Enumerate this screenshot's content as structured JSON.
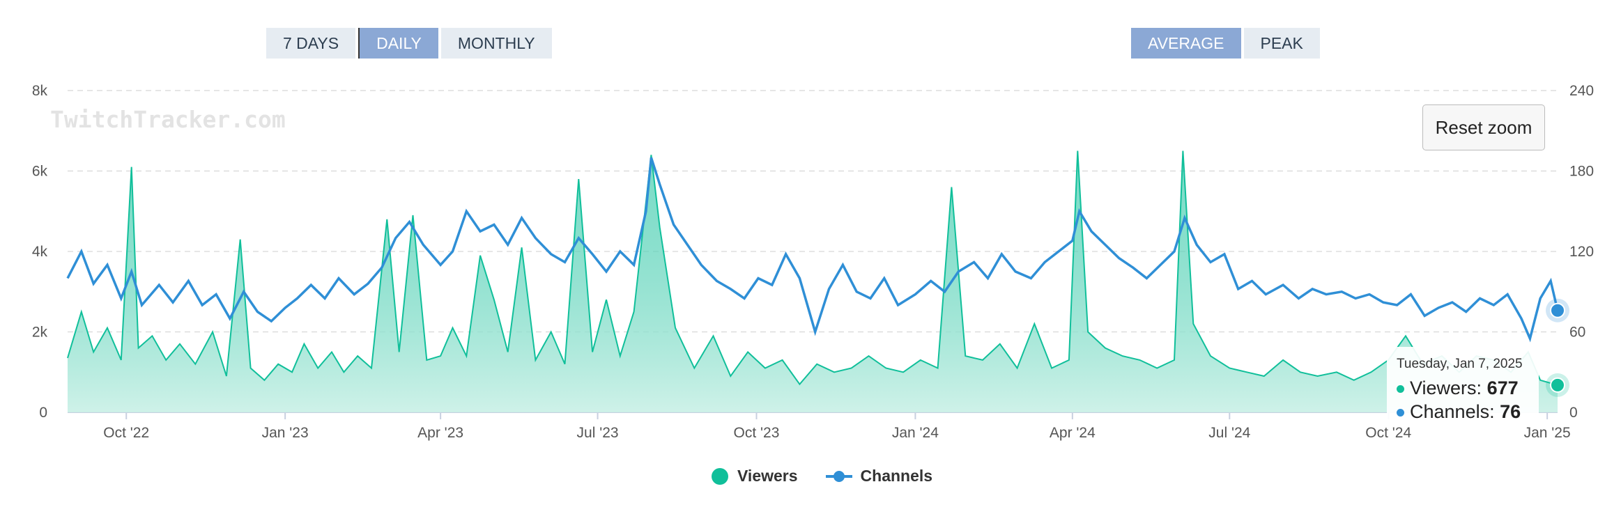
{
  "controls": {
    "period": [
      {
        "label": "7 DAYS",
        "active": false
      },
      {
        "label": "DAILY",
        "active": true
      },
      {
        "label": "MONTHLY",
        "active": false
      }
    ],
    "mode": [
      {
        "label": "AVERAGE",
        "active": true
      },
      {
        "label": "PEAK",
        "active": false
      }
    ]
  },
  "watermark": "TwitchTracker.com",
  "reset_zoom_label": "Reset zoom",
  "tooltip": {
    "date": "Tuesday, Jan 7, 2025",
    "viewers_label": "Viewers:",
    "viewers_value": "677",
    "channels_label": "Channels:",
    "channels_value": "76"
  },
  "legend": {
    "viewers": "Viewers",
    "channels": "Channels"
  },
  "colors": {
    "viewers": "#10bf9a",
    "viewers_fill": "#c9f0e6",
    "channels": "#2f8fd6",
    "grid": "#dddddd",
    "button_active": "#8ba8d5",
    "button_inactive": "#e6ecf2"
  },
  "chart_data": {
    "type": "area",
    "title": "",
    "x_range": [
      "2022-08-28",
      "2025-01-07"
    ],
    "x_ticks": [
      "Oct '22",
      "Jan '23",
      "Apr '23",
      "Jul '23",
      "Oct '23",
      "Jan '24",
      "Apr '24",
      "Jul '24",
      "Oct '24",
      "Jan '25"
    ],
    "y_left": {
      "min": 0,
      "max": 8000,
      "ticks": [
        "0",
        "2k",
        "4k",
        "6k",
        "8k"
      ]
    },
    "y_right": {
      "min": 0,
      "max": 240,
      "ticks": [
        "0",
        "60",
        "120",
        "180",
        "240"
      ]
    },
    "grid": true,
    "legend_position": "bottom-center",
    "series": [
      {
        "name": "Viewers",
        "axis": "left",
        "type": "area",
        "points": [
          [
            "2022-08-28",
            1350
          ],
          [
            "2022-09-05",
            2500
          ],
          [
            "2022-09-12",
            1500
          ],
          [
            "2022-09-20",
            2100
          ],
          [
            "2022-09-28",
            1300
          ],
          [
            "2022-10-04",
            6100
          ],
          [
            "2022-10-08",
            1600
          ],
          [
            "2022-10-16",
            1900
          ],
          [
            "2022-10-24",
            1300
          ],
          [
            "2022-11-01",
            1700
          ],
          [
            "2022-11-10",
            1200
          ],
          [
            "2022-11-20",
            2000
          ],
          [
            "2022-11-28",
            900
          ],
          [
            "2022-12-06",
            4300
          ],
          [
            "2022-12-12",
            1100
          ],
          [
            "2022-12-20",
            800
          ],
          [
            "2022-12-28",
            1200
          ],
          [
            "2023-01-05",
            1000
          ],
          [
            "2023-01-12",
            1700
          ],
          [
            "2023-01-20",
            1100
          ],
          [
            "2023-01-28",
            1500
          ],
          [
            "2023-02-04",
            1000
          ],
          [
            "2023-02-12",
            1400
          ],
          [
            "2023-02-20",
            1100
          ],
          [
            "2023-03-01",
            4800
          ],
          [
            "2023-03-08",
            1500
          ],
          [
            "2023-03-16",
            4900
          ],
          [
            "2023-03-24",
            1300
          ],
          [
            "2023-04-01",
            1400
          ],
          [
            "2023-04-08",
            2100
          ],
          [
            "2023-04-16",
            1400
          ],
          [
            "2023-04-24",
            3900
          ],
          [
            "2023-05-02",
            2800
          ],
          [
            "2023-05-10",
            1500
          ],
          [
            "2023-05-18",
            4100
          ],
          [
            "2023-05-26",
            1300
          ],
          [
            "2023-06-04",
            2000
          ],
          [
            "2023-06-12",
            1200
          ],
          [
            "2023-06-20",
            5800
          ],
          [
            "2023-06-28",
            1500
          ],
          [
            "2023-07-06",
            2800
          ],
          [
            "2023-07-14",
            1400
          ],
          [
            "2023-07-22",
            2500
          ],
          [
            "2023-08-01",
            6400
          ],
          [
            "2023-08-06",
            4600
          ],
          [
            "2023-08-15",
            2100
          ],
          [
            "2023-08-26",
            1100
          ],
          [
            "2023-09-06",
            1900
          ],
          [
            "2023-09-16",
            900
          ],
          [
            "2023-09-26",
            1500
          ],
          [
            "2023-10-06",
            1100
          ],
          [
            "2023-10-16",
            1300
          ],
          [
            "2023-10-26",
            700
          ],
          [
            "2023-11-05",
            1200
          ],
          [
            "2023-11-15",
            1000
          ],
          [
            "2023-11-25",
            1100
          ],
          [
            "2023-12-05",
            1400
          ],
          [
            "2023-12-15",
            1100
          ],
          [
            "2023-12-25",
            1000
          ],
          [
            "2024-01-04",
            1300
          ],
          [
            "2024-01-14",
            1100
          ],
          [
            "2024-01-22",
            5600
          ],
          [
            "2024-01-30",
            1400
          ],
          [
            "2024-02-09",
            1300
          ],
          [
            "2024-02-19",
            1700
          ],
          [
            "2024-02-29",
            1100
          ],
          [
            "2024-03-10",
            2200
          ],
          [
            "2024-03-20",
            1100
          ],
          [
            "2024-03-30",
            1300
          ],
          [
            "2024-04-04",
            6500
          ],
          [
            "2024-04-10",
            2000
          ],
          [
            "2024-04-20",
            1600
          ],
          [
            "2024-04-30",
            1400
          ],
          [
            "2024-05-10",
            1300
          ],
          [
            "2024-05-20",
            1100
          ],
          [
            "2024-05-30",
            1300
          ],
          [
            "2024-06-04",
            6500
          ],
          [
            "2024-06-10",
            2200
          ],
          [
            "2024-06-20",
            1400
          ],
          [
            "2024-07-01",
            1100
          ],
          [
            "2024-07-11",
            1000
          ],
          [
            "2024-07-21",
            900
          ],
          [
            "2024-08-01",
            1300
          ],
          [
            "2024-08-11",
            1000
          ],
          [
            "2024-08-21",
            900
          ],
          [
            "2024-09-01",
            1000
          ],
          [
            "2024-09-11",
            800
          ],
          [
            "2024-09-21",
            1000
          ],
          [
            "2024-10-01",
            1300
          ],
          [
            "2024-10-11",
            1900
          ],
          [
            "2024-10-21",
            1200
          ],
          [
            "2024-11-01",
            1400
          ],
          [
            "2024-11-11",
            1000
          ],
          [
            "2024-11-21",
            1400
          ],
          [
            "2024-12-01",
            1300
          ],
          [
            "2024-12-11",
            1000
          ],
          [
            "2024-12-21",
            1500
          ],
          [
            "2024-12-28",
            800
          ],
          [
            "2025-01-07",
            677
          ]
        ]
      },
      {
        "name": "Channels",
        "axis": "right",
        "type": "line",
        "points": [
          [
            "2022-08-28",
            100
          ],
          [
            "2022-09-05",
            120
          ],
          [
            "2022-09-12",
            96
          ],
          [
            "2022-09-20",
            110
          ],
          [
            "2022-09-28",
            85
          ],
          [
            "2022-10-04",
            105
          ],
          [
            "2022-10-10",
            80
          ],
          [
            "2022-10-20",
            95
          ],
          [
            "2022-10-28",
            82
          ],
          [
            "2022-11-06",
            98
          ],
          [
            "2022-11-14",
            80
          ],
          [
            "2022-11-22",
            88
          ],
          [
            "2022-11-30",
            70
          ],
          [
            "2022-12-08",
            90
          ],
          [
            "2022-12-16",
            75
          ],
          [
            "2022-12-24",
            68
          ],
          [
            "2023-01-01",
            78
          ],
          [
            "2023-01-08",
            85
          ],
          [
            "2023-01-16",
            95
          ],
          [
            "2023-01-24",
            85
          ],
          [
            "2023-02-01",
            100
          ],
          [
            "2023-02-10",
            88
          ],
          [
            "2023-02-18",
            96
          ],
          [
            "2023-02-26",
            108
          ],
          [
            "2023-03-06",
            130
          ],
          [
            "2023-03-14",
            142
          ],
          [
            "2023-03-22",
            125
          ],
          [
            "2023-04-01",
            110
          ],
          [
            "2023-04-08",
            120
          ],
          [
            "2023-04-16",
            150
          ],
          [
            "2023-04-24",
            135
          ],
          [
            "2023-05-02",
            140
          ],
          [
            "2023-05-10",
            125
          ],
          [
            "2023-05-18",
            145
          ],
          [
            "2023-05-26",
            130
          ],
          [
            "2023-06-04",
            118
          ],
          [
            "2023-06-12",
            112
          ],
          [
            "2023-06-20",
            130
          ],
          [
            "2023-06-28",
            118
          ],
          [
            "2023-07-06",
            105
          ],
          [
            "2023-07-14",
            120
          ],
          [
            "2023-07-22",
            110
          ],
          [
            "2023-07-29",
            150
          ],
          [
            "2023-08-01",
            190
          ],
          [
            "2023-08-06",
            170
          ],
          [
            "2023-08-14",
            140
          ],
          [
            "2023-08-22",
            125
          ],
          [
            "2023-08-30",
            110
          ],
          [
            "2023-09-08",
            98
          ],
          [
            "2023-09-16",
            92
          ],
          [
            "2023-09-24",
            85
          ],
          [
            "2023-10-02",
            100
          ],
          [
            "2023-10-10",
            95
          ],
          [
            "2023-10-18",
            118
          ],
          [
            "2023-10-26",
            100
          ],
          [
            "2023-11-04",
            60
          ],
          [
            "2023-11-12",
            92
          ],
          [
            "2023-11-20",
            110
          ],
          [
            "2023-11-28",
            90
          ],
          [
            "2023-12-06",
            85
          ],
          [
            "2023-12-14",
            100
          ],
          [
            "2023-12-22",
            80
          ],
          [
            "2024-01-01",
            88
          ],
          [
            "2024-01-10",
            98
          ],
          [
            "2024-01-18",
            90
          ],
          [
            "2024-01-26",
            105
          ],
          [
            "2024-02-04",
            112
          ],
          [
            "2024-02-12",
            100
          ],
          [
            "2024-02-20",
            118
          ],
          [
            "2024-02-28",
            105
          ],
          [
            "2024-03-08",
            100
          ],
          [
            "2024-03-16",
            112
          ],
          [
            "2024-03-24",
            120
          ],
          [
            "2024-04-01",
            128
          ],
          [
            "2024-04-05",
            150
          ],
          [
            "2024-04-12",
            135
          ],
          [
            "2024-04-20",
            125
          ],
          [
            "2024-04-28",
            115
          ],
          [
            "2024-05-06",
            108
          ],
          [
            "2024-05-14",
            100
          ],
          [
            "2024-05-22",
            110
          ],
          [
            "2024-05-30",
            120
          ],
          [
            "2024-06-05",
            145
          ],
          [
            "2024-06-12",
            125
          ],
          [
            "2024-06-20",
            112
          ],
          [
            "2024-06-28",
            118
          ],
          [
            "2024-07-06",
            92
          ],
          [
            "2024-07-14",
            98
          ],
          [
            "2024-07-22",
            88
          ],
          [
            "2024-08-01",
            95
          ],
          [
            "2024-08-10",
            85
          ],
          [
            "2024-08-18",
            92
          ],
          [
            "2024-08-26",
            88
          ],
          [
            "2024-09-04",
            90
          ],
          [
            "2024-09-12",
            85
          ],
          [
            "2024-09-20",
            88
          ],
          [
            "2024-09-28",
            82
          ],
          [
            "2024-10-06",
            80
          ],
          [
            "2024-10-14",
            88
          ],
          [
            "2024-10-22",
            72
          ],
          [
            "2024-10-30",
            78
          ],
          [
            "2024-11-07",
            82
          ],
          [
            "2024-11-15",
            75
          ],
          [
            "2024-11-23",
            85
          ],
          [
            "2024-12-01",
            80
          ],
          [
            "2024-12-09",
            88
          ],
          [
            "2024-12-17",
            70
          ],
          [
            "2024-12-22",
            55
          ],
          [
            "2024-12-28",
            85
          ],
          [
            "2025-01-03",
            98
          ],
          [
            "2025-01-07",
            76
          ]
        ]
      }
    ]
  }
}
